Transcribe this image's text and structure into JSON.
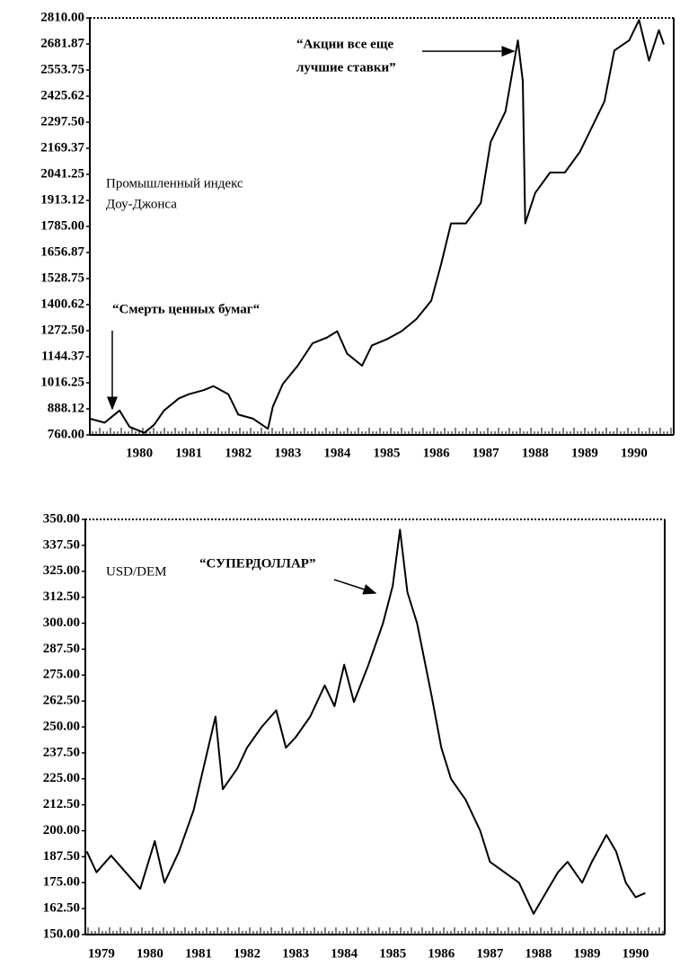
{
  "chart_data": [
    {
      "type": "line",
      "color": "#000000",
      "annotations": [
        "Промышленный индекс",
        "Доу-Джонса",
        "“Акции все еще",
        "лучшие ставки”",
        "“Смерть ценных бумаг“"
      ],
      "x": [
        1979.0,
        1979.3,
        1979.6,
        1979.8,
        1980.1,
        1980.3,
        1980.5,
        1980.8,
        1981.0,
        1981.3,
        1981.5,
        1981.8,
        1982.0,
        1982.3,
        1982.6,
        1982.7,
        1982.9,
        1983.2,
        1983.5,
        1983.8,
        1984.0,
        1984.2,
        1984.5,
        1984.7,
        1985.0,
        1985.3,
        1985.6,
        1985.9,
        1986.1,
        1986.3,
        1986.6,
        1986.9,
        1987.1,
        1987.4,
        1987.65,
        1987.75,
        1987.8,
        1988.0,
        1988.3,
        1988.6,
        1988.9,
        1989.1,
        1989.4,
        1989.6,
        1989.9,
        1990.1,
        1990.3,
        1990.5,
        1990.6
      ],
      "values": [
        840,
        820,
        880,
        800,
        770,
        810,
        880,
        940,
        960,
        980,
        1000,
        960,
        860,
        840,
        790,
        900,
        1010,
        1100,
        1210,
        1240,
        1270,
        1160,
        1100,
        1200,
        1230,
        1270,
        1330,
        1420,
        1600,
        1800,
        1800,
        1900,
        2200,
        2350,
        2700,
        2500,
        1800,
        1950,
        2050,
        2050,
        2150,
        2250,
        2400,
        2650,
        2700,
        2800,
        2600,
        2750,
        2680
      ],
      "xlim": [
        1979.0,
        1990.8
      ],
      "xticks": [
        1980,
        1981,
        1982,
        1983,
        1984,
        1985,
        1986,
        1987,
        1988,
        1989,
        1990
      ],
      "ylim": [
        760,
        2810
      ],
      "yticks": [
        {
          "value": 760,
          "label": "760.00"
        },
        {
          "value": 888.12,
          "label": "888.12"
        },
        {
          "value": 1016.25,
          "label": "1016.25"
        },
        {
          "value": 1144.37,
          "label": "1144.37"
        },
        {
          "value": 1272.5,
          "label": "1272.50"
        },
        {
          "value": 1400.62,
          "label": "1400.62"
        },
        {
          "value": 1528.75,
          "label": "1528.75"
        },
        {
          "value": 1656.87,
          "label": "1656.87"
        },
        {
          "value": 1785,
          "label": "1785.00"
        },
        {
          "value": 1913.12,
          "label": "1913.12"
        },
        {
          "value": 2041.25,
          "label": "2041.25"
        },
        {
          "value": 2169.37,
          "label": "2169.37"
        },
        {
          "value": 2297.5,
          "label": "2297.50"
        },
        {
          "value": 2425.62,
          "label": "2425.62"
        },
        {
          "value": 2553.75,
          "label": "2553.75"
        },
        {
          "value": 2681.87,
          "label": "2681.87"
        },
        {
          "value": 2810,
          "label": "2810.00"
        }
      ]
    },
    {
      "type": "line",
      "color": "#000000",
      "annotations": [
        "USD/DEM",
        "“СУПЕРДОЛЛАР”"
      ],
      "x": [
        1978.7,
        1978.9,
        1979.2,
        1979.5,
        1979.8,
        1980.1,
        1980.3,
        1980.6,
        1980.9,
        1981.1,
        1981.35,
        1981.5,
        1981.8,
        1982.0,
        1982.3,
        1982.6,
        1982.8,
        1983.0,
        1983.3,
        1983.6,
        1983.8,
        1984.0,
        1984.2,
        1984.5,
        1984.8,
        1985.0,
        1985.15,
        1985.3,
        1985.5,
        1985.8,
        1986.0,
        1986.2,
        1986.5,
        1986.8,
        1987.0,
        1987.3,
        1987.6,
        1987.9,
        1988.1,
        1988.4,
        1988.6,
        1988.9,
        1989.1,
        1989.4,
        1989.6,
        1989.8,
        1990.0,
        1990.2
      ],
      "values": [
        190,
        180,
        188,
        180,
        172,
        195,
        175,
        190,
        210,
        230,
        255,
        220,
        230,
        240,
        250,
        258,
        240,
        245,
        255,
        270,
        260,
        280,
        262,
        280,
        300,
        318,
        345,
        315,
        300,
        265,
        240,
        225,
        215,
        200,
        185,
        180,
        175,
        160,
        168,
        180,
        185,
        175,
        185,
        198,
        190,
        175,
        168,
        170
      ],
      "xlim": [
        1978.67,
        1990.6
      ],
      "xticks": [
        1979,
        1980,
        1981,
        1982,
        1983,
        1984,
        1985,
        1986,
        1987,
        1988,
        1989,
        1990
      ],
      "ylim": [
        150,
        350
      ],
      "yticks": [
        {
          "value": 150,
          "label": "150.00"
        },
        {
          "value": 162.5,
          "label": "162.50"
        },
        {
          "value": 175,
          "label": "175.00"
        },
        {
          "value": 187.5,
          "label": "187.50"
        },
        {
          "value": 200,
          "label": "200.00"
        },
        {
          "value": 212.5,
          "label": "212.50"
        },
        {
          "value": 225,
          "label": "225.00"
        },
        {
          "value": 237.5,
          "label": "237.50"
        },
        {
          "value": 250,
          "label": "250.00"
        },
        {
          "value": 262.5,
          "label": "262.50"
        },
        {
          "value": 275,
          "label": "275.00"
        },
        {
          "value": 287.5,
          "label": "287.50"
        },
        {
          "value": 300,
          "label": "300.00"
        },
        {
          "value": 312.5,
          "label": "312.50"
        },
        {
          "value": 325,
          "label": "325.00"
        },
        {
          "value": 337.5,
          "label": "337.50"
        },
        {
          "value": 350,
          "label": "350.00"
        }
      ]
    }
  ]
}
